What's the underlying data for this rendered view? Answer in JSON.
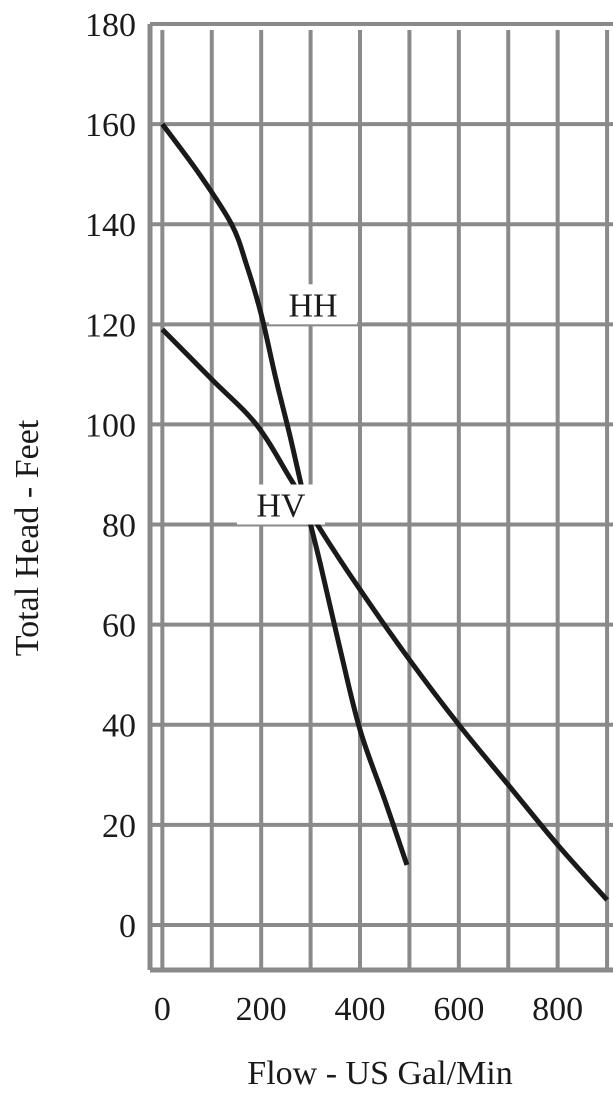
{
  "chart_data": {
    "type": "line",
    "title": "",
    "xlabel": "Flow - US Gal/Min",
    "ylabel": "Total Head - Feet",
    "xlim": [
      -25,
      912
    ],
    "ylim": [
      -9,
      180
    ],
    "x_ticks": [
      0,
      200,
      400,
      600,
      800
    ],
    "x_tick_labels": [
      "0",
      "200",
      "400",
      "600",
      "800"
    ],
    "y_ticks": [
      0,
      20,
      40,
      60,
      80,
      100,
      120,
      140,
      160,
      180
    ],
    "y_tick_labels": [
      "0",
      "20",
      "40",
      "60",
      "80",
      "100",
      "120",
      "140",
      "160",
      "180"
    ],
    "grid": true,
    "grid_x_step": 100,
    "grid_color": "#8a8a8a",
    "line_color": "#1a1a1a",
    "series": [
      {
        "name": "HH",
        "points": [
          [
            0,
            160
          ],
          [
            75,
            150
          ],
          [
            140,
            140
          ],
          [
            170,
            132
          ],
          [
            200,
            122
          ],
          [
            230,
            109
          ],
          [
            260,
            97
          ],
          [
            290,
            84
          ],
          [
            320,
            72
          ],
          [
            360,
            55
          ],
          [
            400,
            39
          ],
          [
            450,
            25
          ],
          [
            495,
            12
          ]
        ]
      },
      {
        "name": "HV",
        "points": [
          [
            0,
            119
          ],
          [
            100,
            109
          ],
          [
            190,
            100
          ],
          [
            260,
            89
          ],
          [
            320,
            79
          ],
          [
            400,
            67
          ],
          [
            500,
            53
          ],
          [
            600,
            40
          ],
          [
            700,
            28
          ],
          [
            800,
            16
          ],
          [
            900,
            5
          ]
        ]
      }
    ],
    "annotations": [
      {
        "text": "HH",
        "x": 305,
        "y": 124
      },
      {
        "text": "HV",
        "x": 240,
        "y": 84
      }
    ]
  }
}
